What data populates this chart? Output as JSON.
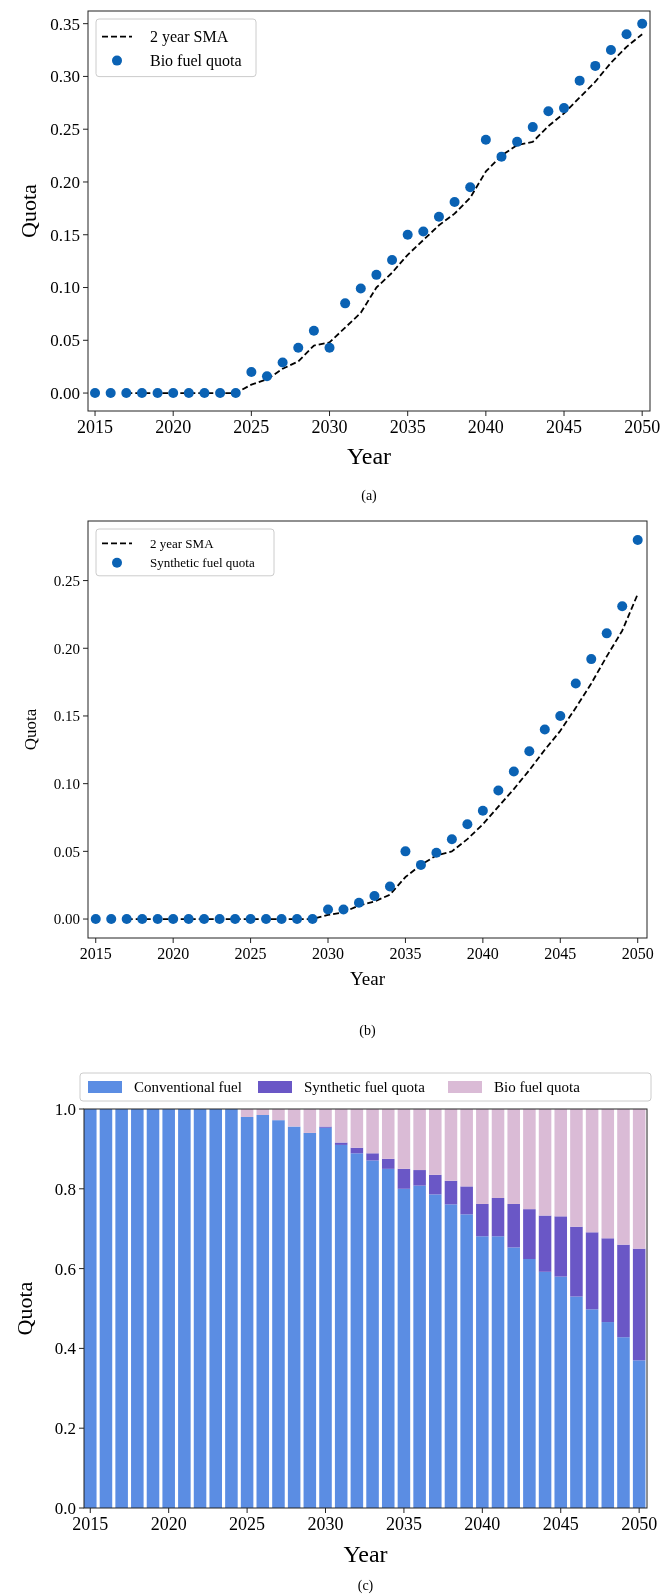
{
  "chart_data": [
    {
      "type": "scatter",
      "xlabel": "Year",
      "ylabel": "Quota",
      "annotations": [
        "(a)"
      ],
      "legend": "top left",
      "grid": false,
      "xlim": [
        2014.55,
        2050.5
      ],
      "xticks": [
        2015,
        2020,
        2025,
        2030,
        2035,
        2040,
        2045,
        2050
      ],
      "ylim": [
        -0.017,
        0.362
      ],
      "yticks": [
        {
          "value": 0,
          "label": "0.00"
        },
        {
          "value": 0.05,
          "label": "0.05"
        },
        {
          "value": 0.1,
          "label": "0.10"
        },
        {
          "value": 0.15,
          "label": "0.15"
        },
        {
          "value": 0.2,
          "label": "0.20"
        },
        {
          "value": 0.25,
          "label": "0.25"
        },
        {
          "value": 0.3,
          "label": "0.30"
        },
        {
          "value": 0.35,
          "label": "0.35"
        }
      ],
      "series": [
        {
          "name": "2 year SMA",
          "type": "line",
          "line_style": "dashed",
          "color": "#000000",
          "x": [
            2017,
            2018,
            2019,
            2020,
            2021,
            2022,
            2023,
            2024,
            2025,
            2026,
            2027,
            2028,
            2029,
            2030,
            2031,
            2032,
            2033,
            2034,
            2035,
            2036,
            2037,
            2038,
            2039,
            2040,
            2041,
            2042,
            2043,
            2044,
            2045,
            2046,
            2047,
            2048,
            2049,
            2050
          ],
          "values": [
            0,
            0,
            0,
            0,
            0,
            0,
            0,
            0,
            0.008,
            0.013,
            0.023,
            0.03,
            0.045,
            0.048,
            0.062,
            0.076,
            0.1,
            0.114,
            0.131,
            0.145,
            0.159,
            0.17,
            0.185,
            0.21,
            0.225,
            0.235,
            0.238,
            0.253,
            0.265,
            0.28,
            0.295,
            0.313,
            0.328,
            0.34
          ]
        },
        {
          "name": "Bio fuel quota",
          "type": "scatter",
          "marker": "circle",
          "color": "#0a62b4",
          "x": [
            2015,
            2016,
            2017,
            2018,
            2019,
            2020,
            2021,
            2022,
            2023,
            2024,
            2025,
            2026,
            2027,
            2028,
            2029,
            2030,
            2031,
            2032,
            2033,
            2034,
            2035,
            2036,
            2037,
            2038,
            2039,
            2040,
            2041,
            2042,
            2043,
            2044,
            2045,
            2046,
            2047,
            2048,
            2049,
            2050
          ],
          "values": [
            0,
            0,
            0,
            0,
            0,
            0,
            0,
            0,
            0,
            0,
            0.02,
            0.016,
            0.029,
            0.043,
            0.059,
            0.043,
            0.085,
            0.099,
            0.112,
            0.126,
            0.15,
            0.153,
            0.167,
            0.181,
            0.195,
            0.24,
            0.224,
            0.238,
            0.252,
            0.267,
            0.27,
            0.296,
            0.31,
            0.325,
            0.34,
            0.35
          ]
        }
      ]
    },
    {
      "type": "scatter",
      "xlabel": "Year",
      "ylabel": "Quota",
      "annotations": [
        "(b)"
      ],
      "legend": "top left",
      "grid": false,
      "xlim": [
        2014.5,
        2050.6
      ],
      "xticks": [
        2015,
        2020,
        2025,
        2030,
        2035,
        2040,
        2045,
        2050
      ],
      "ylim": [
        -0.014,
        0.294
      ],
      "yticks": [
        {
          "value": 0,
          "label": "0.00"
        },
        {
          "value": 0.05,
          "label": "0.05"
        },
        {
          "value": 0.1,
          "label": "0.10"
        },
        {
          "value": 0.15,
          "label": "0.15"
        },
        {
          "value": 0.2,
          "label": "0.20"
        },
        {
          "value": 0.25,
          "label": "0.25"
        }
      ],
      "series": [
        {
          "name": "2 year SMA",
          "type": "line",
          "line_style": "dashed",
          "color": "#000000",
          "x": [
            2017,
            2018,
            2019,
            2020,
            2021,
            2022,
            2023,
            2024,
            2025,
            2026,
            2027,
            2028,
            2029,
            2030,
            2031,
            2032,
            2033,
            2034,
            2035,
            2036,
            2037,
            2038,
            2039,
            2040,
            2041,
            2042,
            2043,
            2044,
            2045,
            2046,
            2047,
            2048,
            2049,
            2050
          ],
          "values": [
            0,
            0,
            0,
            0,
            0,
            0,
            0,
            0,
            0,
            0,
            0,
            0,
            0,
            0.003,
            0.005,
            0.01,
            0.013,
            0.018,
            0.031,
            0.04,
            0.047,
            0.05,
            0.059,
            0.07,
            0.083,
            0.096,
            0.11,
            0.125,
            0.139,
            0.156,
            0.174,
            0.194,
            0.213,
            0.24
          ]
        },
        {
          "name": "Synthetic fuel quota",
          "type": "scatter",
          "marker": "circle",
          "color": "#0a62b4",
          "x": [
            2015,
            2016,
            2017,
            2018,
            2019,
            2020,
            2021,
            2022,
            2023,
            2024,
            2025,
            2026,
            2027,
            2028,
            2029,
            2030,
            2031,
            2032,
            2033,
            2034,
            2035,
            2036,
            2037,
            2038,
            2039,
            2040,
            2041,
            2042,
            2043,
            2044,
            2045,
            2046,
            2047,
            2048,
            2049,
            2050
          ],
          "values": [
            0,
            0,
            0,
            0,
            0,
            0,
            0,
            0,
            0,
            0,
            0,
            0,
            0,
            0,
            0,
            0.007,
            0.007,
            0.012,
            0.017,
            0.024,
            0.05,
            0.04,
            0.049,
            0.059,
            0.07,
            0.08,
            0.095,
            0.109,
            0.124,
            0.14,
            0.15,
            0.174,
            0.192,
            0.211,
            0.231,
            0.28
          ]
        }
      ]
    },
    {
      "type": "bar",
      "stacked": true,
      "xlabel": "Year",
      "ylabel": "Quota",
      "annotations": [
        "(c)"
      ],
      "legend": "top",
      "grid": false,
      "xlim": [
        2014.6,
        2050.5
      ],
      "xticks": [
        2015,
        2020,
        2025,
        2030,
        2035,
        2040,
        2045,
        2050
      ],
      "ylim": [
        0,
        1
      ],
      "yticks": [
        {
          "value": 0,
          "label": "0.0"
        },
        {
          "value": 0.2,
          "label": "0.2"
        },
        {
          "value": 0.4,
          "label": "0.4"
        },
        {
          "value": 0.6,
          "label": "0.6"
        },
        {
          "value": 0.8,
          "label": "0.8"
        },
        {
          "value": 1,
          "label": "1.0"
        }
      ],
      "x": [
        2015,
        2016,
        2017,
        2018,
        2019,
        2020,
        2021,
        2022,
        2023,
        2024,
        2025,
        2026,
        2027,
        2028,
        2029,
        2030,
        2031,
        2032,
        2033,
        2034,
        2035,
        2036,
        2037,
        2038,
        2039,
        2040,
        2041,
        2042,
        2043,
        2044,
        2045,
        2046,
        2047,
        2048,
        2049,
        2050
      ],
      "series": [
        {
          "name": "Conventional fuel",
          "color": "#5b8de3",
          "values": [
            1,
            1,
            1,
            1,
            1,
            1,
            1,
            1,
            1,
            1,
            0.98,
            0.985,
            0.972,
            0.956,
            0.94,
            0.953,
            0.91,
            0.889,
            0.871,
            0.85,
            0.8,
            0.808,
            0.786,
            0.761,
            0.736,
            0.681,
            0.681,
            0.653,
            0.624,
            0.592,
            0.58,
            0.53,
            0.498,
            0.466,
            0.428,
            0.37
          ]
        },
        {
          "name": "Synthetic fuel quota",
          "color": "#6a57c6",
          "values": [
            0,
            0,
            0,
            0,
            0,
            0,
            0,
            0,
            0,
            0,
            0,
            0,
            0,
            0,
            0,
            0.003,
            0.006,
            0.014,
            0.018,
            0.025,
            0.05,
            0.039,
            0.049,
            0.059,
            0.07,
            0.081,
            0.096,
            0.109,
            0.125,
            0.141,
            0.151,
            0.175,
            0.193,
            0.21,
            0.232,
            0.28
          ]
        },
        {
          "name": "Bio fuel quota",
          "color": "#dabbd6",
          "values": [
            0,
            0,
            0,
            0,
            0,
            0,
            0,
            0,
            0,
            0,
            0.02,
            0.015,
            0.028,
            0.044,
            0.06,
            0.044,
            0.084,
            0.097,
            0.111,
            0.125,
            0.15,
            0.153,
            0.165,
            0.18,
            0.194,
            0.238,
            0.223,
            0.238,
            0.251,
            0.267,
            0.269,
            0.295,
            0.309,
            0.324,
            0.34,
            0.35
          ]
        }
      ]
    }
  ]
}
